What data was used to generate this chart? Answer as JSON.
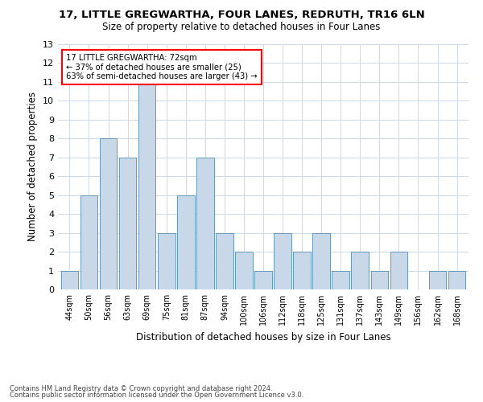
{
  "title1": "17, LITTLE GREGWARTHA, FOUR LANES, REDRUTH, TR16 6LN",
  "title2": "Size of property relative to detached houses in Four Lanes",
  "xlabel": "Distribution of detached houses by size in Four Lanes",
  "ylabel": "Number of detached properties",
  "categories": [
    "44sqm",
    "50sqm",
    "56sqm",
    "63sqm",
    "69sqm",
    "75sqm",
    "81sqm",
    "87sqm",
    "94sqm",
    "100sqm",
    "106sqm",
    "112sqm",
    "118sqm",
    "125sqm",
    "131sqm",
    "137sqm",
    "143sqm",
    "149sqm",
    "156sqm",
    "162sqm",
    "168sqm"
  ],
  "values": [
    1,
    5,
    8,
    7,
    11,
    3,
    5,
    7,
    3,
    2,
    1,
    3,
    2,
    3,
    1,
    2,
    1,
    2,
    0,
    1,
    1
  ],
  "bar_color": "#c8d8e8",
  "bar_edge_color": "#6699bb",
  "annotation_line1": "17 LITTLE GREGWARTHA: 72sqm",
  "annotation_line2": "← 37% of detached houses are smaller (25)",
  "annotation_line3": "63% of semi-detached houses are larger (43) →",
  "footer1": "Contains HM Land Registry data © Crown copyright and database right 2024.",
  "footer2": "Contains public sector information licensed under the Open Government Licence v3.0.",
  "ylim": [
    0,
    13
  ],
  "background_color": "#ffffff",
  "grid_color": "#ccd9e8"
}
